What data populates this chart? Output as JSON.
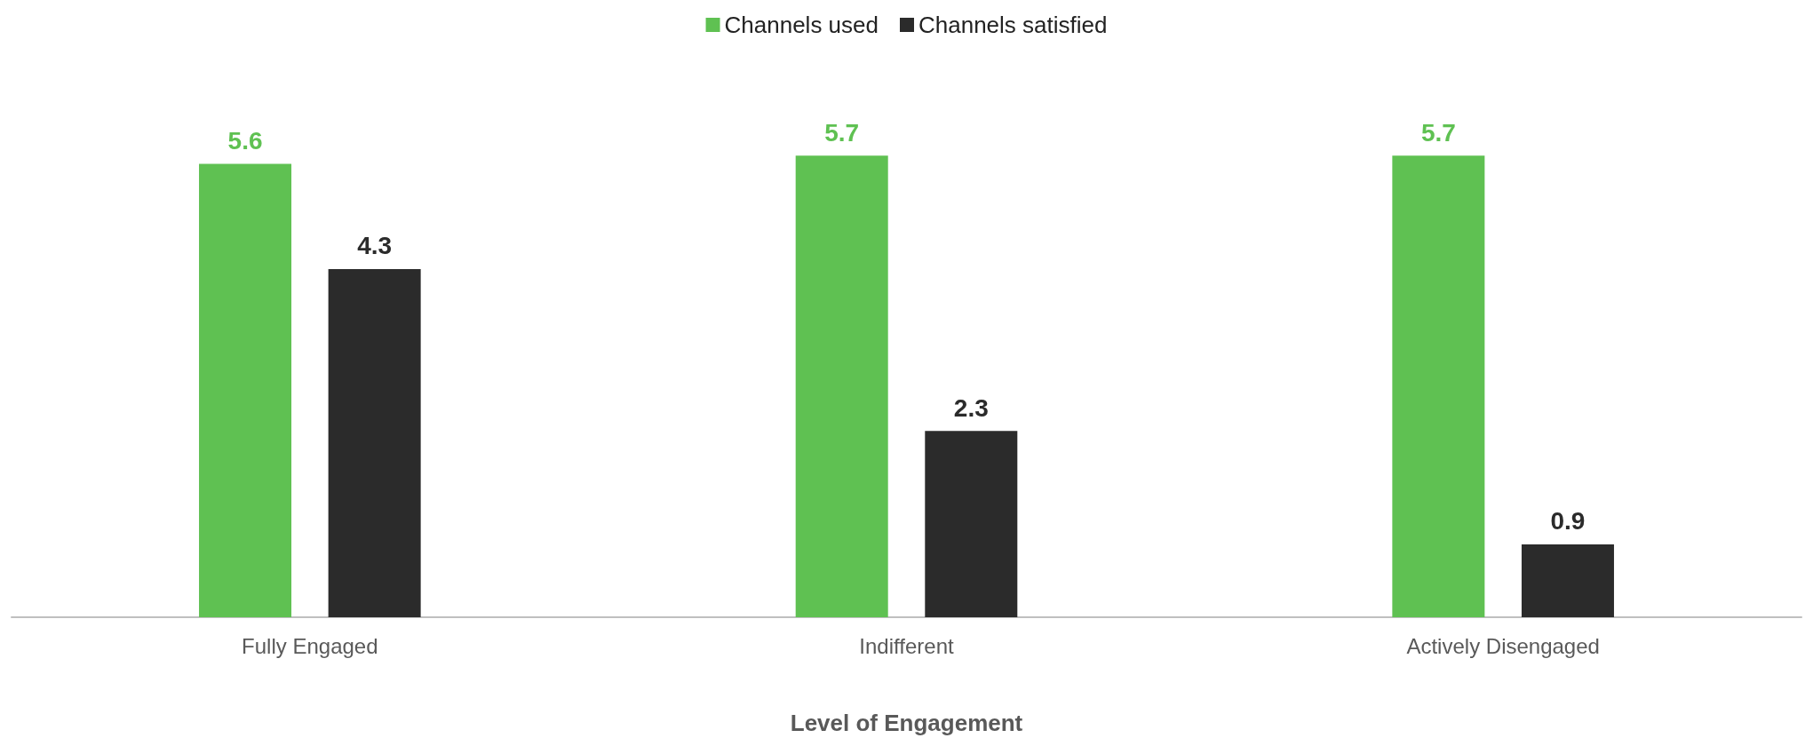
{
  "chart_data": {
    "type": "bar",
    "xlabel": "Level of Engagement",
    "categories": [
      "Fully Engaged",
      "Indifferent",
      "Actively Disengaged"
    ],
    "series": [
      {
        "name": "Channels used",
        "color": "#5fc152",
        "values": [
          5.6,
          5.7,
          5.7
        ]
      },
      {
        "name": "Channels satisfied",
        "color": "#2b2b2b",
        "values": [
          4.3,
          2.3,
          0.9
        ]
      }
    ],
    "data_labels": true,
    "legend": "top",
    "grid": false
  }
}
